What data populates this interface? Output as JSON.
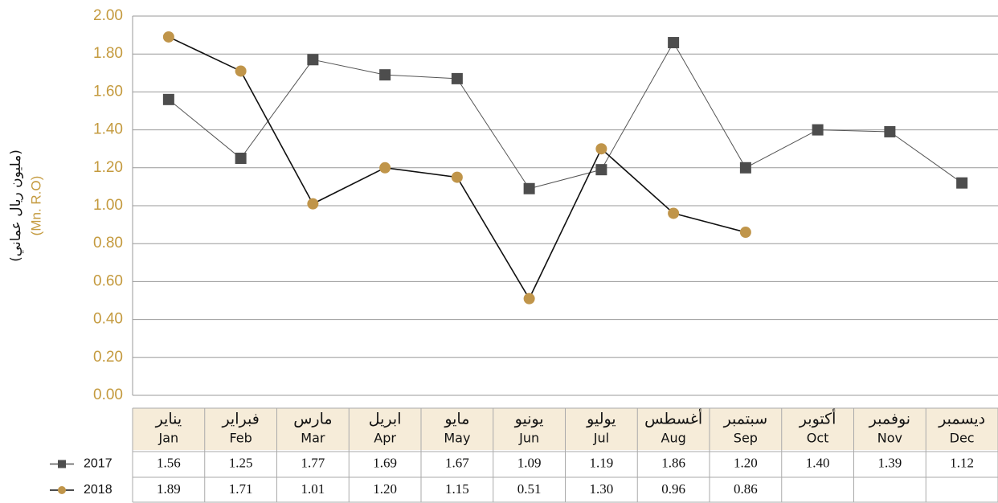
{
  "chart_data": {
    "type": "line",
    "y_label_ar": "(مليون ريال عماني)",
    "y_label": "(Mn. R.O)",
    "categories": [
      "Jan",
      "Feb",
      "Mar",
      "Apr",
      "May",
      "Jun",
      "Jul",
      "Aug",
      "Sep",
      "Oct",
      "Nov",
      "Dec"
    ],
    "categories_ar": [
      "يناير",
      "فبراير",
      "مارس",
      "ابريل",
      "مايو",
      "يونيو",
      "يوليو",
      "أغسطس",
      "سبتمبر",
      "أكتوبر",
      "نوفمبر",
      "ديسمبر"
    ],
    "series": [
      {
        "name": "2017",
        "color": "#4d4d4d",
        "line_color": "#555555",
        "marker": "square",
        "values": [
          1.56,
          1.25,
          1.77,
          1.69,
          1.67,
          1.09,
          1.19,
          1.86,
          1.2,
          1.4,
          1.39,
          1.12
        ],
        "value_labels": [
          "1.56",
          "1.25",
          "1.77",
          "1.69",
          "1.67",
          "1.09",
          "1.19",
          "1.86",
          "1.20",
          "1.40",
          "1.39",
          "1.12"
        ]
      },
      {
        "name": "2018",
        "color": "#c0954a",
        "line_color": "#111111",
        "marker": "circle",
        "values": [
          1.89,
          1.71,
          1.01,
          1.2,
          1.15,
          0.51,
          1.3,
          0.96,
          0.86,
          null,
          null,
          null
        ],
        "value_labels": [
          "1.89",
          "1.71",
          "1.01",
          "1.20",
          "1.15",
          "0.51",
          "1.30",
          "0.96",
          "0.86",
          null,
          null,
          null
        ]
      }
    ],
    "ylim": [
      0,
      2
    ],
    "yticks": [
      {
        "value": 0,
        "label": "0.00"
      },
      {
        "value": 0.2,
        "label": "0.20"
      },
      {
        "value": 0.4,
        "label": "0.40"
      },
      {
        "value": 0.6,
        "label": "0.60"
      },
      {
        "value": 0.8,
        "label": "0.80"
      },
      {
        "value": 1,
        "label": "1.00"
      },
      {
        "value": 1.2,
        "label": "1.20"
      },
      {
        "value": 1.4,
        "label": "1.40"
      },
      {
        "value": 1.6,
        "label": "1.60"
      },
      {
        "value": 1.8,
        "label": "1.80"
      },
      {
        "value": 2,
        "label": "2.00"
      }
    ],
    "grid": true
  }
}
